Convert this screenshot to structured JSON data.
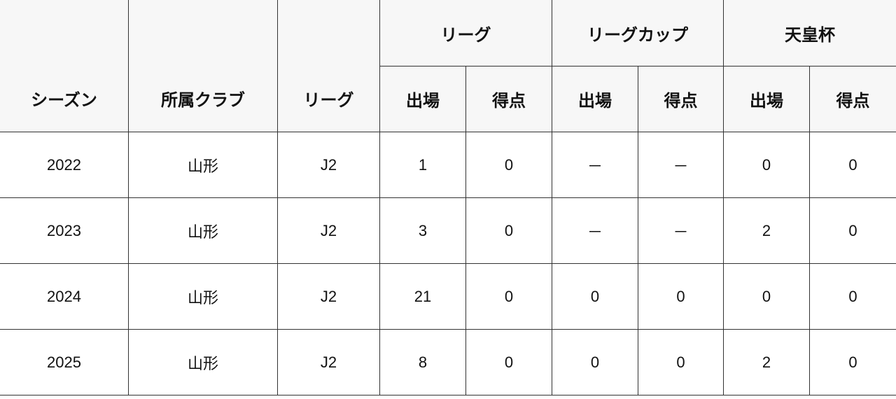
{
  "headers": {
    "season": "シーズン",
    "club": "所属クラブ",
    "league": "リーグ",
    "groups": [
      "リーグ",
      "リーグカップ",
      "天皇杯"
    ],
    "apps": "出場",
    "goals": "得点"
  },
  "rows": [
    {
      "season": "2022",
      "club": "山形",
      "league": "J2",
      "vals": [
        "1",
        "0",
        "－",
        "－",
        "0",
        "0"
      ]
    },
    {
      "season": "2023",
      "club": "山形",
      "league": "J2",
      "vals": [
        "3",
        "0",
        "－",
        "－",
        "2",
        "0"
      ]
    },
    {
      "season": "2024",
      "club": "山形",
      "league": "J2",
      "vals": [
        "21",
        "0",
        "0",
        "0",
        "0",
        "0"
      ]
    },
    {
      "season": "2025",
      "club": "山形",
      "league": "J2",
      "vals": [
        "8",
        "0",
        "0",
        "0",
        "2",
        "0"
      ]
    }
  ]
}
